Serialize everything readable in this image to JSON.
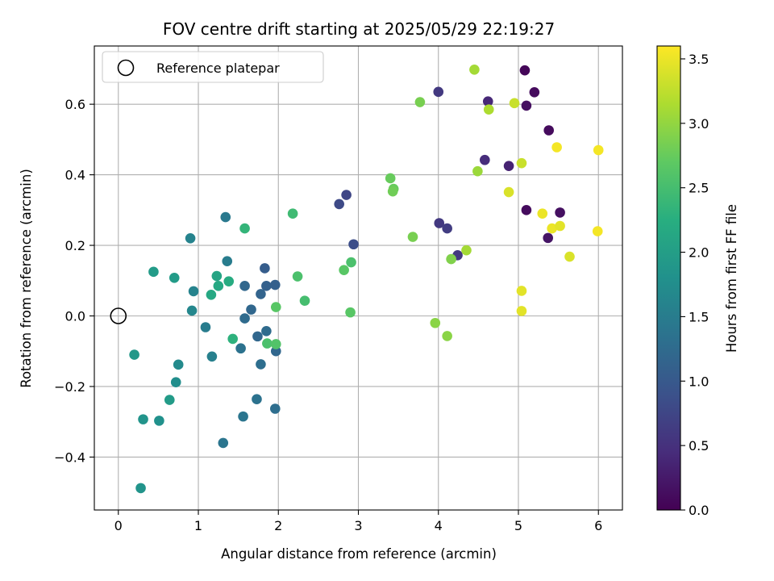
{
  "chart_data": {
    "type": "scatter",
    "title": "FOV centre drift starting at 2025/05/29 22:19:27",
    "xlabel": "Angular distance from reference (arcmin)",
    "ylabel": "Rotation from reference (arcmin)",
    "xlim": [
      -0.3,
      6.3
    ],
    "ylim": [
      -0.55,
      0.765
    ],
    "xticks": [
      0,
      1,
      2,
      3,
      4,
      5,
      6
    ],
    "xtick_labels": [
      "0",
      "1",
      "2",
      "3",
      "4",
      "5",
      "6"
    ],
    "yticks": [
      -0.4,
      -0.2,
      0.0,
      0.2,
      0.4,
      0.6
    ],
    "ytick_labels": [
      "−0.4",
      "−0.2",
      "0.0",
      "0.2",
      "0.4",
      "0.6"
    ],
    "grid": true,
    "colormap": "viridis",
    "colorbar": {
      "label": "Hours from first FF file",
      "range": [
        0.0,
        3.6
      ],
      "ticks": [
        0.0,
        0.5,
        1.0,
        1.5,
        2.0,
        2.5,
        3.0,
        3.5
      ],
      "tick_labels": [
        "0.0",
        "0.5",
        "1.0",
        "1.5",
        "2.0",
        "2.5",
        "3.0",
        "3.5"
      ]
    },
    "legend": {
      "placement": "top-left",
      "entries": [
        {
          "label": "Reference platepar",
          "marker": "open-circle"
        }
      ]
    },
    "reference_point": {
      "x": 0.0,
      "y": 0.0
    },
    "points": [
      {
        "x": 5.08,
        "y": 0.696,
        "c": 0.05
      },
      {
        "x": 5.2,
        "y": 0.634,
        "c": 0.1
      },
      {
        "x": 5.1,
        "y": 0.596,
        "c": 0.15
      },
      {
        "x": 5.38,
        "y": 0.526,
        "c": 0.1
      },
      {
        "x": 5.1,
        "y": 0.3,
        "c": 0.1
      },
      {
        "x": 5.52,
        "y": 0.293,
        "c": 0.15
      },
      {
        "x": 5.37,
        "y": 0.221,
        "c": 0.2
      },
      {
        "x": 4.88,
        "y": 0.425,
        "c": 0.35
      },
      {
        "x": 4.62,
        "y": 0.608,
        "c": 0.4
      },
      {
        "x": 4.58,
        "y": 0.442,
        "c": 0.45
      },
      {
        "x": 4.0,
        "y": 0.635,
        "c": 0.6
      },
      {
        "x": 4.01,
        "y": 0.263,
        "c": 0.6
      },
      {
        "x": 4.11,
        "y": 0.248,
        "c": 0.65
      },
      {
        "x": 4.24,
        "y": 0.172,
        "c": 0.6
      },
      {
        "x": 2.85,
        "y": 0.343,
        "c": 0.75
      },
      {
        "x": 2.76,
        "y": 0.317,
        "c": 0.8
      },
      {
        "x": 2.94,
        "y": 0.203,
        "c": 0.85
      },
      {
        "x": 1.83,
        "y": 0.135,
        "c": 1.05
      },
      {
        "x": 1.85,
        "y": 0.085,
        "c": 1.1
      },
      {
        "x": 1.96,
        "y": 0.088,
        "c": 1.1
      },
      {
        "x": 1.78,
        "y": 0.062,
        "c": 1.15
      },
      {
        "x": 1.66,
        "y": 0.018,
        "c": 1.2
      },
      {
        "x": 1.58,
        "y": 0.085,
        "c": 1.2
      },
      {
        "x": 1.58,
        "y": -0.007,
        "c": 1.25
      },
      {
        "x": 1.74,
        "y": -0.058,
        "c": 1.2
      },
      {
        "x": 1.85,
        "y": -0.043,
        "c": 1.25
      },
      {
        "x": 1.97,
        "y": -0.1,
        "c": 1.2
      },
      {
        "x": 1.78,
        "y": -0.137,
        "c": 1.3
      },
      {
        "x": 1.53,
        "y": -0.092,
        "c": 1.35
      },
      {
        "x": 1.96,
        "y": -0.263,
        "c": 1.3
      },
      {
        "x": 1.73,
        "y": -0.236,
        "c": 1.35
      },
      {
        "x": 1.56,
        "y": -0.285,
        "c": 1.4
      },
      {
        "x": 1.31,
        "y": -0.36,
        "c": 1.4
      },
      {
        "x": 1.34,
        "y": 0.28,
        "c": 1.45
      },
      {
        "x": 1.36,
        "y": 0.155,
        "c": 1.5
      },
      {
        "x": 1.09,
        "y": -0.032,
        "c": 1.5
      },
      {
        "x": 1.17,
        "y": -0.115,
        "c": 1.55
      },
      {
        "x": 0.9,
        "y": 0.22,
        "c": 1.6
      },
      {
        "x": 0.94,
        "y": 0.07,
        "c": 1.6
      },
      {
        "x": 0.92,
        "y": 0.015,
        "c": 1.65
      },
      {
        "x": 0.75,
        "y": -0.138,
        "c": 1.7
      },
      {
        "x": 0.72,
        "y": -0.188,
        "c": 1.75
      },
      {
        "x": 0.51,
        "y": -0.297,
        "c": 1.8
      },
      {
        "x": 0.31,
        "y": -0.293,
        "c": 1.85
      },
      {
        "x": 0.28,
        "y": -0.488,
        "c": 1.85
      },
      {
        "x": 0.2,
        "y": -0.11,
        "c": 1.9
      },
      {
        "x": 0.64,
        "y": -0.238,
        "c": 1.95
      },
      {
        "x": 0.7,
        "y": 0.108,
        "c": 1.95
      },
      {
        "x": 0.44,
        "y": 0.125,
        "c": 1.95
      },
      {
        "x": 1.23,
        "y": 0.113,
        "c": 2.1
      },
      {
        "x": 1.25,
        "y": 0.085,
        "c": 2.15
      },
      {
        "x": 1.16,
        "y": 0.06,
        "c": 2.15
      },
      {
        "x": 1.38,
        "y": 0.098,
        "c": 2.2
      },
      {
        "x": 1.43,
        "y": -0.065,
        "c": 2.3
      },
      {
        "x": 1.58,
        "y": 0.248,
        "c": 2.35
      },
      {
        "x": 2.18,
        "y": 0.29,
        "c": 2.45
      },
      {
        "x": 2.33,
        "y": 0.043,
        "c": 2.5
      },
      {
        "x": 2.24,
        "y": 0.112,
        "c": 2.55
      },
      {
        "x": 1.86,
        "y": -0.078,
        "c": 2.55
      },
      {
        "x": 1.97,
        "y": -0.08,
        "c": 2.6
      },
      {
        "x": 1.97,
        "y": 0.025,
        "c": 2.65
      },
      {
        "x": 2.91,
        "y": 0.152,
        "c": 2.55
      },
      {
        "x": 2.82,
        "y": 0.13,
        "c": 2.65
      },
      {
        "x": 2.9,
        "y": 0.01,
        "c": 2.65
      },
      {
        "x": 3.4,
        "y": 0.39,
        "c": 2.75
      },
      {
        "x": 3.44,
        "y": 0.36,
        "c": 2.75
      },
      {
        "x": 3.43,
        "y": 0.353,
        "c": 2.8
      },
      {
        "x": 3.68,
        "y": 0.224,
        "c": 2.85
      },
      {
        "x": 3.77,
        "y": 0.606,
        "c": 2.85
      },
      {
        "x": 3.96,
        "y": -0.02,
        "c": 2.95
      },
      {
        "x": 4.11,
        "y": -0.057,
        "c": 2.95
      },
      {
        "x": 4.16,
        "y": 0.161,
        "c": 2.9
      },
      {
        "x": 4.35,
        "y": 0.186,
        "c": 3.1
      },
      {
        "x": 4.45,
        "y": 0.698,
        "c": 3.1
      },
      {
        "x": 4.49,
        "y": 0.41,
        "c": 3.05
      },
      {
        "x": 4.63,
        "y": 0.585,
        "c": 3.15
      },
      {
        "x": 4.95,
        "y": 0.603,
        "c": 3.3
      },
      {
        "x": 5.04,
        "y": 0.433,
        "c": 3.3
      },
      {
        "x": 4.88,
        "y": 0.351,
        "c": 3.4
      },
      {
        "x": 5.3,
        "y": 0.29,
        "c": 3.5
      },
      {
        "x": 5.48,
        "y": 0.478,
        "c": 3.55
      },
      {
        "x": 5.42,
        "y": 0.248,
        "c": 3.5
      },
      {
        "x": 5.52,
        "y": 0.255,
        "c": 3.45
      },
      {
        "x": 5.64,
        "y": 0.168,
        "c": 3.4
      },
      {
        "x": 5.04,
        "y": 0.071,
        "c": 3.45
      },
      {
        "x": 5.04,
        "y": 0.014,
        "c": 3.45
      },
      {
        "x": 6.0,
        "y": 0.47,
        "c": 3.55
      },
      {
        "x": 5.99,
        "y": 0.24,
        "c": 3.55
      }
    ]
  }
}
